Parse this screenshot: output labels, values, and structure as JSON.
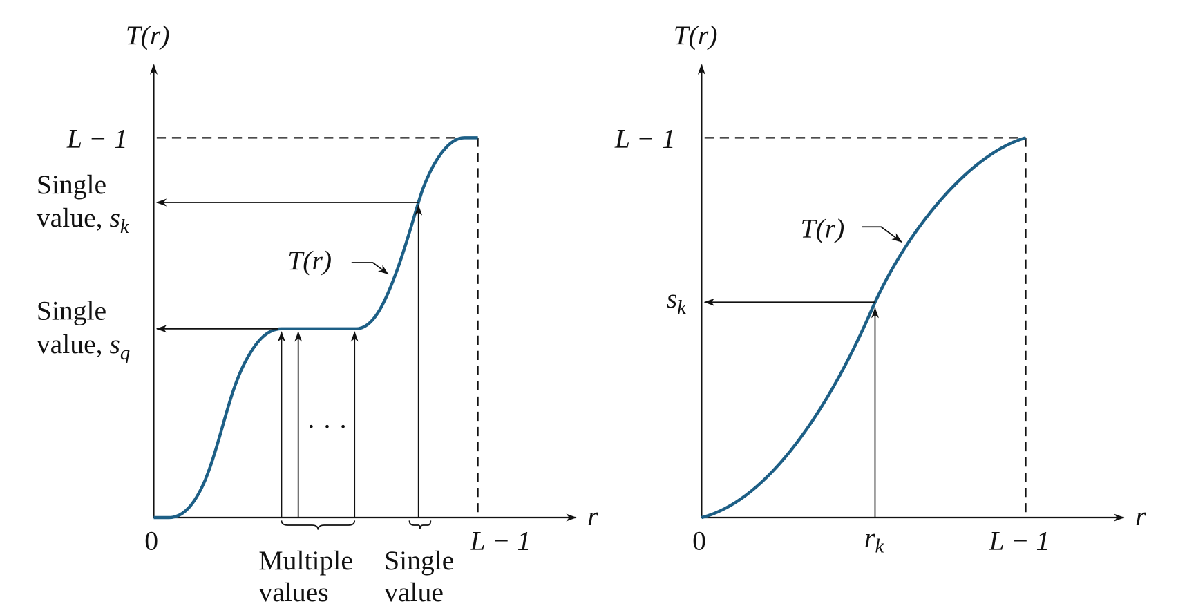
{
  "left": {
    "y_axis_label": "T(r)",
    "x_axis_label": "r",
    "origin": "0",
    "y_max_label": "L − 1",
    "x_max_label": "L − 1",
    "sk_label": {
      "line1": "Single",
      "line2": "value, ",
      "symbol": "s",
      "subscript": "k"
    },
    "sq_label": {
      "line1": "Single",
      "line2": "value, ",
      "symbol": "s",
      "subscript": "q"
    },
    "curve_label": "T(r)",
    "ellipsis": "· · ·",
    "multiple_label": {
      "line1": "Multiple",
      "line2": "values"
    },
    "single_label": {
      "line1": "Single",
      "line2": "value"
    }
  },
  "right": {
    "y_axis_label": "T(r)",
    "x_axis_label": "r",
    "origin": "0",
    "y_max_label": "L − 1",
    "x_max_label": "L − 1",
    "curve_label": "T(r)",
    "sk_label": {
      "symbol": "s",
      "subscript": "k"
    },
    "rk_label": {
      "symbol": "r",
      "subscript": "k"
    }
  }
}
